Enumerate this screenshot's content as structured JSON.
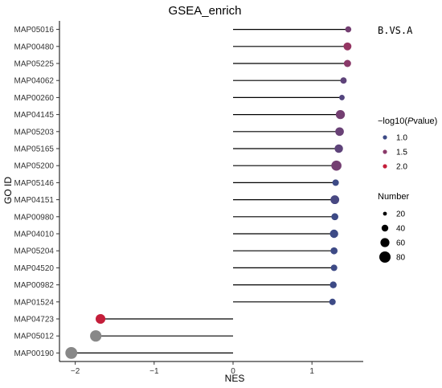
{
  "chart_data": {
    "type": "scatter",
    "title": "GSEA_enrich",
    "xlabel": "NES",
    "ylabel": "GO ID",
    "xlim": [
      -2.2,
      1.65
    ],
    "x_ticks": [
      -2,
      -1,
      0,
      1
    ],
    "categories": [
      "MAP05016",
      "MAP00480",
      "MAP05225",
      "MAP04062",
      "MAP00260",
      "MAP04145",
      "MAP05203",
      "MAP05165",
      "MAP05200",
      "MAP05146",
      "MAP04151",
      "MAP00980",
      "MAP04010",
      "MAP05204",
      "MAP04520",
      "MAP00982",
      "MAP01524",
      "MAP04723",
      "MAP05012",
      "MAP00190"
    ],
    "nes": [
      1.46,
      1.45,
      1.45,
      1.4,
      1.38,
      1.36,
      1.35,
      1.34,
      1.31,
      1.3,
      1.29,
      1.29,
      1.28,
      1.28,
      1.28,
      1.27,
      1.26,
      -1.68,
      -1.74,
      -2.05
    ],
    "neg_log10_pvalue": [
      1.3,
      1.6,
      1.5,
      1.1,
      1.0,
      1.3,
      1.2,
      1.1,
      1.3,
      0.8,
      0.9,
      0.8,
      0.8,
      0.8,
      0.8,
      0.8,
      0.8,
      2.1,
      null,
      null
    ],
    "number": [
      12,
      30,
      22,
      14,
      8,
      45,
      38,
      36,
      62,
      15,
      40,
      20,
      35,
      20,
      15,
      18,
      15,
      55,
      85,
      95
    ],
    "legend_color": {
      "title": "−log10(Pvalue)",
      "title_prefix": "−log10(",
      "title_italic": "P",
      "title_suffix": "value)",
      "values": [
        "1.0",
        "1.5",
        "2.0"
      ],
      "colors": [
        "#3d4a86",
        "#8a3a6a",
        "#c41e3a"
      ],
      "na_color": "#888888"
    },
    "legend_size": {
      "title": "Number",
      "values": [
        "20",
        "40",
        "60",
        "80"
      ]
    },
    "corner_label": "B.VS.A",
    "grid": false,
    "legend_position": "right"
  }
}
